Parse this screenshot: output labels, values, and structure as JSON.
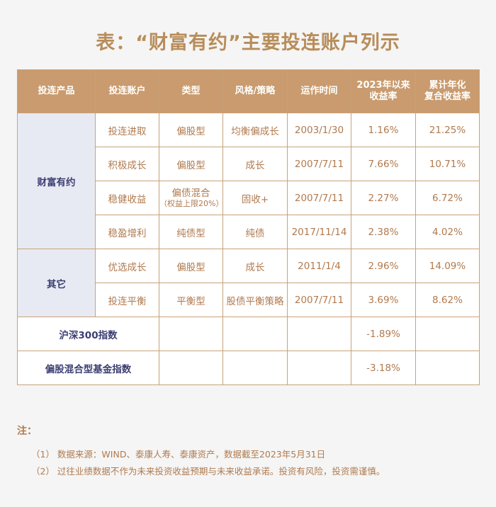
{
  "title": "表：“财富有约”主要投连账户列示",
  "table": {
    "headers": [
      "投连产品",
      "投连账户",
      "类型",
      "风格/策略",
      "运作时间",
      "2023年以来\n收益率",
      "累计年化\n复合收益率"
    ],
    "groups": [
      {
        "product": "财富有约",
        "rows": [
          {
            "account": "投连进取",
            "type": "偏股型",
            "type_sub": "",
            "style": "均衡偏成长",
            "time": "2003/1/30",
            "ytd": "1.16%",
            "cagr": "21.25%"
          },
          {
            "account": "积极成长",
            "type": "偏股型",
            "type_sub": "",
            "style": "成长",
            "time": "2007/7/11",
            "ytd": "7.66%",
            "cagr": "10.71%"
          },
          {
            "account": "稳健收益",
            "type": "偏债混合",
            "type_sub": "（权益上限20%）",
            "style": "固收+",
            "time": "2007/7/11",
            "ytd": "2.27%",
            "cagr": "6.72%"
          },
          {
            "account": "稳盈增利",
            "type": "纯债型",
            "type_sub": "",
            "style": "纯债",
            "time": "2017/11/14",
            "ytd": "2.38%",
            "cagr": "4.02%"
          }
        ]
      },
      {
        "product": "其它",
        "rows": [
          {
            "account": "优选成长",
            "type": "偏股型",
            "type_sub": "",
            "style": "成长",
            "time": "2011/1/4",
            "ytd": "2.96%",
            "cagr": "14.09%"
          },
          {
            "account": "投连平衡",
            "type": "平衡型",
            "type_sub": "",
            "style": "股债平衡策略",
            "time": "2007/7/11",
            "ytd": "3.69%",
            "cagr": "8.62%"
          }
        ]
      }
    ],
    "indices": [
      {
        "name": "沪深300指数",
        "ytd": "-1.89%"
      },
      {
        "name": "偏股混合型基金指数",
        "ytd": "-3.18%"
      }
    ]
  },
  "notes": {
    "title": "注：",
    "lines": [
      "（1） 数据来源：WIND、泰康人寿、泰康资产，数据截至2023年5月31日",
      "（2） 过往业绩数据不作为未来投资收益预期与未来收益承诺。投资有风险，投资需谨慎。"
    ]
  }
}
